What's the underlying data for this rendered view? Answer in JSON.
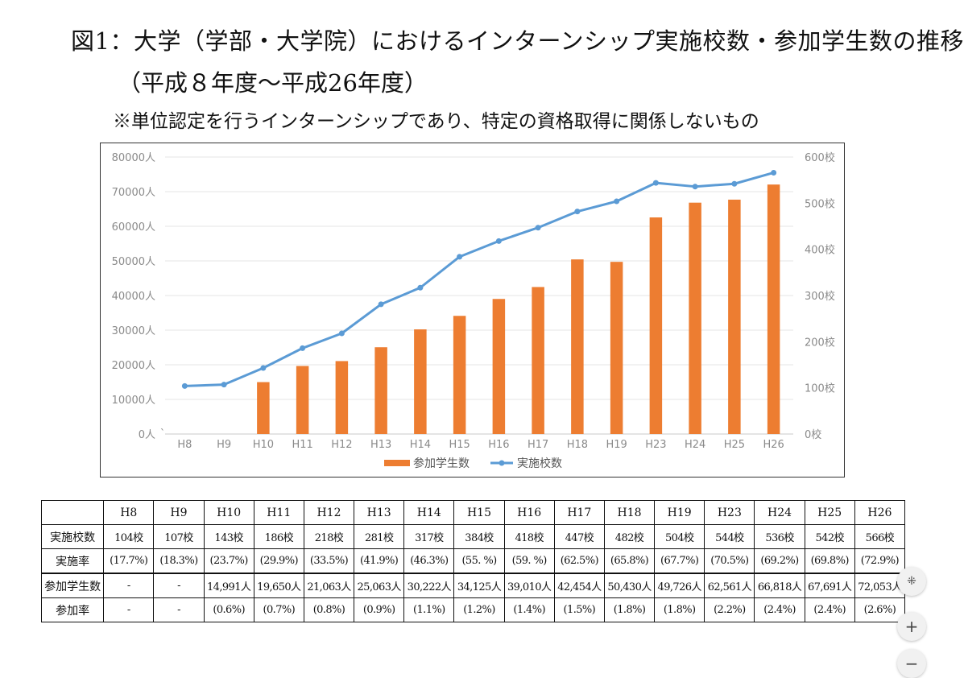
{
  "title": {
    "line1": "図1：大学（学部・大学院）におけるインターンシップ実施校数・参加学生数の推移",
    "line2": "（平成８年度～平成26年度）",
    "note": "※単位認定を行うインターンシップであり、特定の資格取得に関係しないもの"
  },
  "chart_data": {
    "type": "bar+line",
    "categories": [
      "H8",
      "H9",
      "H10",
      "H11",
      "H12",
      "H13",
      "H14",
      "H15",
      "H16",
      "H17",
      "H18",
      "H19",
      "H23",
      "H24",
      "H25",
      "H26"
    ],
    "series": [
      {
        "name": "参加学生数",
        "type": "bar",
        "axis": "left",
        "color": "#ed7d31",
        "values": [
          null,
          null,
          14991,
          19650,
          21063,
          25063,
          30222,
          34125,
          39010,
          42454,
          50430,
          49726,
          62561,
          66818,
          67691,
          72053
        ]
      },
      {
        "name": "実施校数",
        "type": "line",
        "axis": "right",
        "color": "#5b9bd5",
        "values": [
          104,
          107,
          143,
          186,
          218,
          281,
          317,
          384,
          418,
          447,
          482,
          504,
          544,
          536,
          542,
          566
        ]
      }
    ],
    "y_left": {
      "min": 0,
      "max": 80000,
      "ticks": [
        "0人",
        "10000人",
        "20000人",
        "30000人",
        "40000人",
        "50000人",
        "60000人",
        "70000人",
        "80000人"
      ]
    },
    "y_right": {
      "min": 0,
      "max": 600,
      "ticks": [
        "0校",
        "100校",
        "200校",
        "300校",
        "400校",
        "500校",
        "600校"
      ]
    },
    "legend_position": "bottom",
    "extra_mark": "`"
  },
  "table": {
    "headers": [
      "",
      "H8",
      "H9",
      "H10",
      "H11",
      "H12",
      "H13",
      "H14",
      "H15",
      "H16",
      "H17",
      "H18",
      "H19",
      "H23",
      "H24",
      "H25",
      "H26"
    ],
    "rows": [
      {
        "label": "実施校数",
        "cells": [
          "104校",
          "107校",
          "143校",
          "186校",
          "218校",
          "281校",
          "317校",
          "384校",
          "418校",
          "447校",
          "482校",
          "504校",
          "544校",
          "536校",
          "542校",
          "566校"
        ]
      },
      {
        "label": "実施率",
        "cells": [
          "(17.7%)",
          "(18.3%)",
          "(23.7%)",
          "(29.9%)",
          "(33.5%)",
          "(41.9%)",
          "(46.3%)",
          "(55. %)",
          "(59. %)",
          "(62.5%)",
          "(65.8%)",
          "(67.7%)",
          "(70.5%)",
          "(69.2%)",
          "(69.8%)",
          "(72.9%)"
        ]
      },
      {
        "label": "参加学生数",
        "cells": [
          "-",
          "-",
          "14,991人",
          "19,650人",
          "21,063人",
          "25,063人",
          "30,222人",
          "34,125人",
          "39,010人",
          "42,454人",
          "50,430人",
          "49,726人",
          "62,561人",
          "66,818人",
          "67,691人",
          "72,053人"
        ]
      },
      {
        "label": "参加率",
        "cells": [
          "-",
          "-",
          "(0.6%)",
          "(0.7%)",
          "(0.8%)",
          "(0.9%)",
          "(1.1%)",
          "(1.2%)",
          "(1.4%)",
          "(1.5%)",
          "(1.8%)",
          "(1.8%)",
          "(2.2%)",
          "(2.4%)",
          "(2.4%)",
          "(2.6%)"
        ]
      }
    ]
  },
  "controls": {
    "collapse_icon": "collapse-icon",
    "zoom_in_label": "+",
    "zoom_out_label": "−"
  }
}
